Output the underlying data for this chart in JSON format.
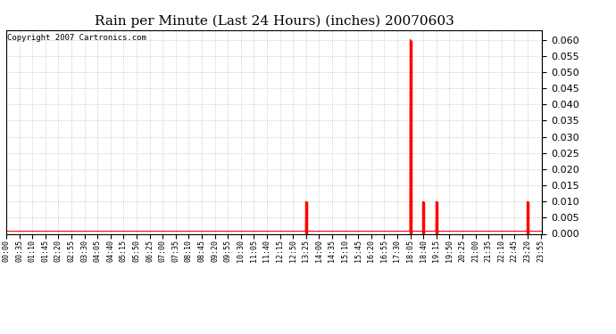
{
  "title": "Rain per Minute (Last 24 Hours) (inches) 20070603",
  "copyright": "Copyright 2007 Cartronics.com",
  "bar_color": "#ff0000",
  "background_color": "#ffffff",
  "plot_bg_color": "#ffffff",
  "ylim_min": 0.0,
  "ylim_max": 0.063,
  "yticks": [
    0.0,
    0.005,
    0.01,
    0.015,
    0.02,
    0.025,
    0.03,
    0.035,
    0.04,
    0.045,
    0.05,
    0.055,
    0.06
  ],
  "spikes": {
    "13:25": 0.01,
    "18:05": 0.06,
    "18:40": 0.01,
    "19:15": 0.01,
    "23:20": 0.01
  },
  "baseline_value": 0.0008,
  "total_minutes": 1440,
  "tick_interval_minutes": 35,
  "grid_color": "#bbbbbb",
  "spine_color": "#000000",
  "title_fontsize": 11,
  "ytick_fontsize": 8,
  "xtick_fontsize": 6,
  "copyright_fontsize": 6.5
}
